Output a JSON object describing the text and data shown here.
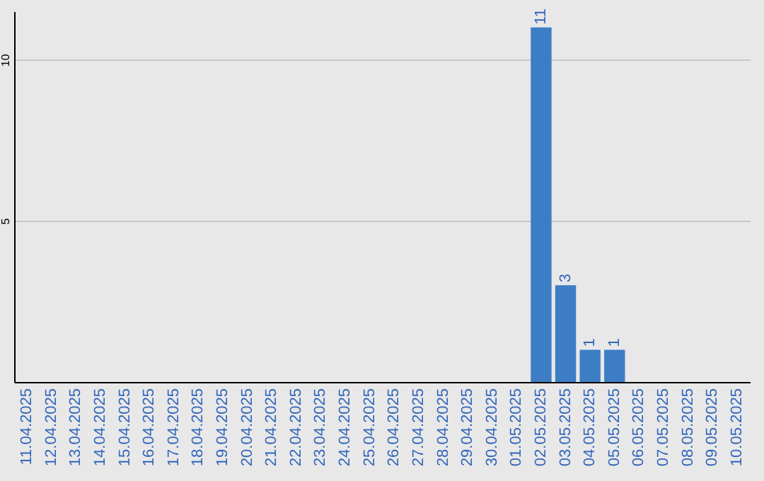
{
  "chart_data": {
    "type": "bar",
    "categories": [
      "11.04.2025",
      "12.04.2025",
      "13.04.2025",
      "14.04.2025",
      "15.04.2025",
      "16.04.2025",
      "17.04.2025",
      "18.04.2025",
      "19.04.2025",
      "20.04.2025",
      "21.04.2025",
      "22.04.2025",
      "23.04.2025",
      "24.04.2025",
      "25.04.2025",
      "26.04.2025",
      "27.04.2025",
      "28.04.2025",
      "29.04.2025",
      "30.04.2025",
      "01.05.2025",
      "02.05.2025",
      "03.05.2025",
      "04.05.2025",
      "05.05.2025",
      "06.05.2025",
      "07.05.2025",
      "08.05.2025",
      "09.05.2025",
      "10.05.2025"
    ],
    "values": [
      0,
      0,
      0,
      0,
      0,
      0,
      0,
      0,
      0,
      0,
      0,
      0,
      0,
      0,
      0,
      0,
      0,
      0,
      0,
      0,
      0,
      11,
      3,
      1,
      1,
      0,
      0,
      0,
      0,
      0
    ],
    "value_labels": [
      null,
      null,
      null,
      null,
      null,
      null,
      null,
      null,
      null,
      null,
      null,
      null,
      null,
      null,
      null,
      null,
      null,
      null,
      null,
      null,
      null,
      "11",
      "3",
      "1",
      "1",
      null,
      null,
      null,
      null,
      null
    ],
    "color": "#3d7dc6",
    "ylim": [
      0,
      11.5
    ],
    "yticks": [
      5,
      10
    ],
    "grid": "y"
  }
}
